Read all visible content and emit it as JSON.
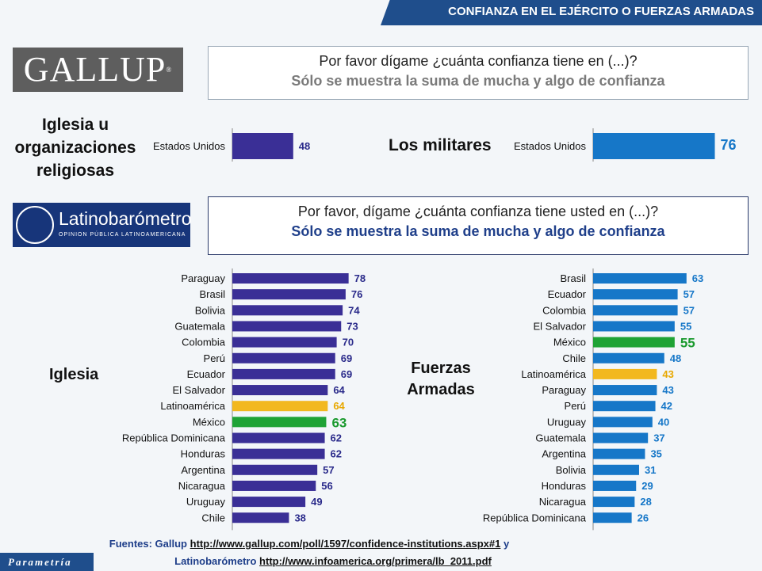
{
  "header": {
    "title": "CONFIANZA EN EL EJÉRCITO O FUERZAS ARMADAS"
  },
  "gallup": {
    "logo": "GALLUP",
    "question_line1": "Por favor dígame ¿cuánta confianza tiene en (...)?",
    "question_line2": "Sólo se muestra la suma de mucha y algo de confianza"
  },
  "latinobarometro": {
    "logo_name": "Latinobarómetro",
    "logo_sub": "OPINION PÚBLICA LATINOAMERICANA",
    "question_line1": "Por favor, dígame ¿cuánta confianza tiene usted en (...)?",
    "question_line2": "Sólo se muestra la suma de mucha y algo de confianza"
  },
  "labels": {
    "iglesia_gallup_line1": "Iglesia u",
    "iglesia_gallup_line2": "organizaciones",
    "iglesia_gallup_line3": "religiosas",
    "militares": "Los militares",
    "iglesia": "Iglesia",
    "fuerzas_line1": "Fuerzas",
    "fuerzas_line2": "Armadas"
  },
  "colors": {
    "purple": "#3a2f96",
    "blue": "#1677c8",
    "yellow": "#f2b81f",
    "green": "#1fa335",
    "header": "#1f4e8c"
  },
  "chart_data": [
    {
      "type": "bar",
      "orientation": "horizontal",
      "id": "gallup_iglesia",
      "categories": [
        "Estados Unidos"
      ],
      "values": [
        48
      ],
      "xlim": [
        0,
        100
      ]
    },
    {
      "type": "bar",
      "orientation": "horizontal",
      "id": "gallup_militares",
      "categories": [
        "Estados Unidos"
      ],
      "values": [
        76
      ],
      "xlim": [
        0,
        100
      ]
    },
    {
      "type": "bar",
      "orientation": "horizontal",
      "id": "lb_iglesia",
      "categories": [
        "Paraguay",
        "Brasil",
        "Bolivia",
        "Guatemala",
        "Colombia",
        "Perú",
        "Ecuador",
        "El Salvador",
        "Latinoamérica",
        "México",
        "República Dominicana",
        "Honduras",
        "Argentina",
        "Nicaragua",
        "Uruguay",
        "Chile"
      ],
      "values": [
        78,
        76,
        74,
        73,
        70,
        69,
        69,
        64,
        64,
        63,
        62,
        62,
        57,
        56,
        49,
        38
      ],
      "highlight": {
        "Latinoamérica": "yellow",
        "México": "green"
      },
      "xlim": [
        0,
        100
      ]
    },
    {
      "type": "bar",
      "orientation": "horizontal",
      "id": "lb_fuerzas",
      "categories": [
        "Brasil",
        "Ecuador",
        "Colombia",
        "El Salvador",
        "México",
        "Chile",
        "Latinoamérica",
        "Paraguay",
        "Perú",
        "Uruguay",
        "Guatemala",
        "Argentina",
        "Bolivia",
        "Honduras",
        "Nicaragua",
        "República Dominicana"
      ],
      "values": [
        63,
        57,
        57,
        55,
        55,
        48,
        43,
        43,
        42,
        40,
        37,
        35,
        31,
        29,
        28,
        26
      ],
      "highlight": {
        "Latinoamérica": "yellow",
        "México": "green"
      },
      "xlim": [
        0,
        100
      ]
    }
  ],
  "sources": {
    "prefix1": "Fuentes: Gallup",
    "url1": "http://www.gallup.com/poll/1597/confidence-institutions.aspx#1",
    "mid": "y",
    "prefix2": "Latinobarómetro",
    "url2": "http://www.infoamerica.org/primera/lb_2011.pdf"
  },
  "footer": {
    "brand": "Parametría"
  }
}
